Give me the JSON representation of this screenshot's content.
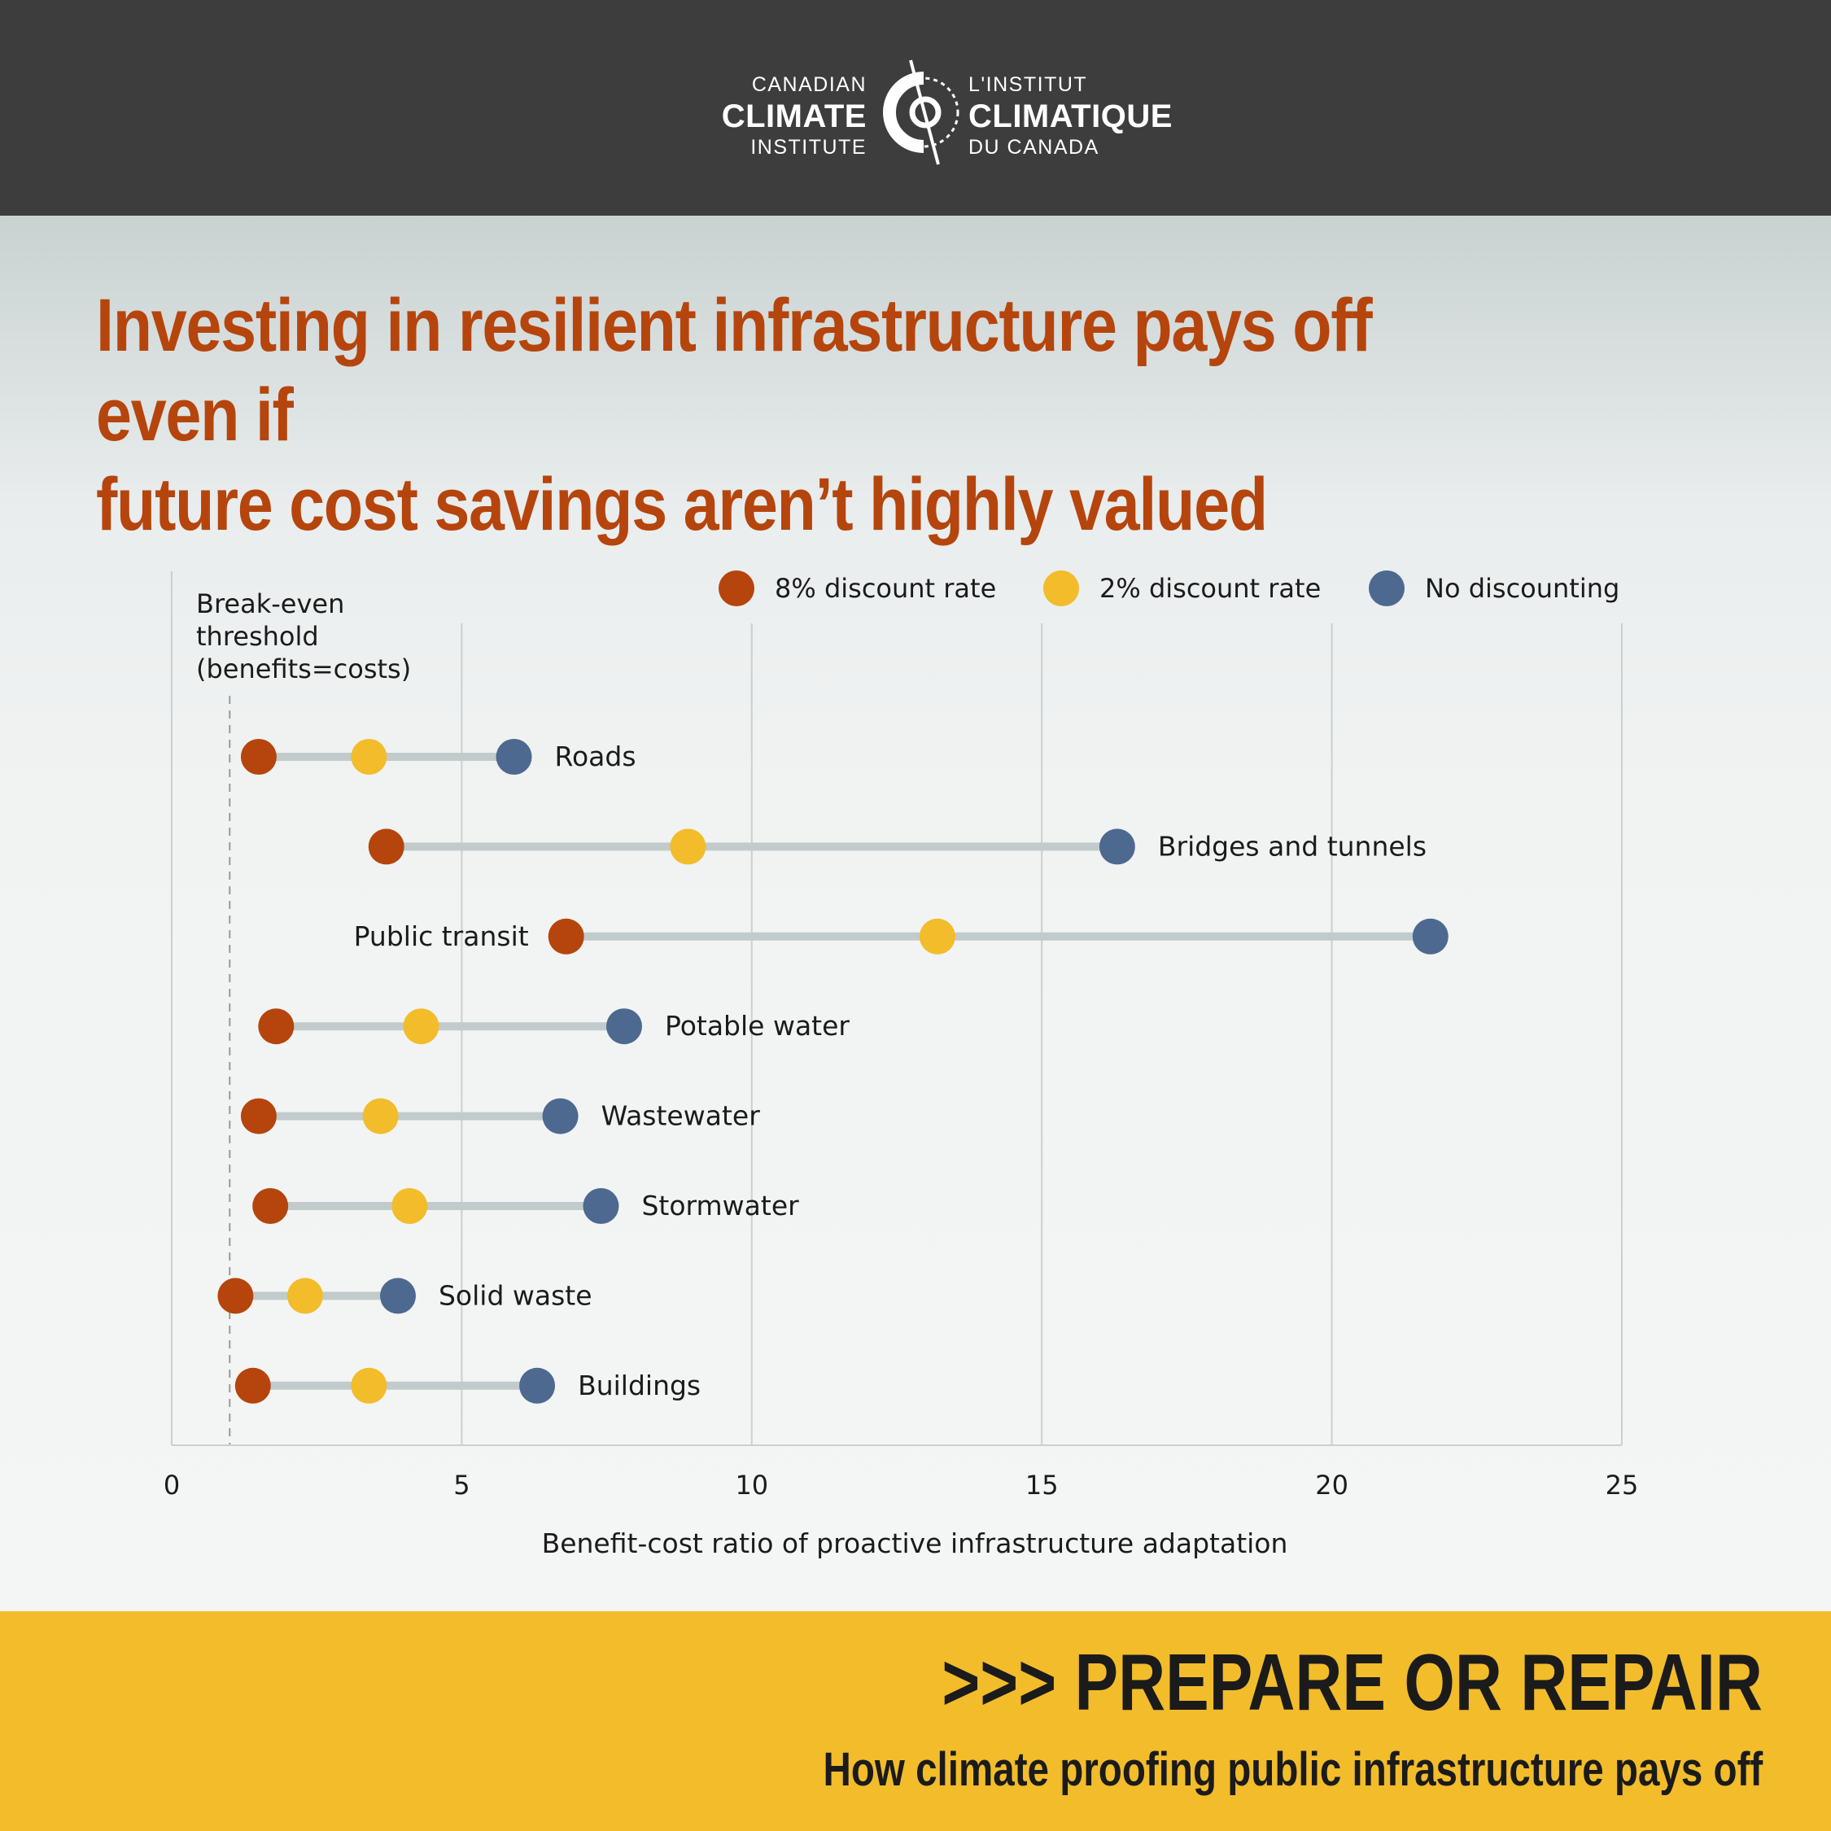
{
  "header": {
    "logo_en": [
      "CANADIAN",
      "CLIMATE",
      "INSTITUTE"
    ],
    "logo_fr": [
      "L'INSTITUT",
      "CLIMATIQUE",
      "DU CANADA"
    ]
  },
  "title_lines": [
    "Investing in resilient infrastructure pays off even if",
    "future cost savings aren’t highly valued"
  ],
  "footer": {
    "title": ">>> PREPARE OR REPAIR",
    "subtitle": "How climate proofing public infrastructure pays off"
  },
  "colors": {
    "rate8": "#b5450d",
    "rate2": "#f2bc2b",
    "none": "#4d6990",
    "connector": "#c2cbcb"
  },
  "chart_data": {
    "type": "dot",
    "xlabel": "Benefit-cost ratio of proactive infrastructure adaptation",
    "xlim": [
      0,
      25
    ],
    "xticks": [
      0,
      5,
      10,
      15,
      20,
      25
    ],
    "grid": true,
    "legend_position": "top-right",
    "threshold": {
      "value": 1,
      "label": [
        "Break-even",
        "threshold",
        "(benefits=costs)"
      ]
    },
    "series": [
      {
        "name": "8% discount rate",
        "color": "#b5450d"
      },
      {
        "name": "2% discount rate",
        "color": "#f2bc2b"
      },
      {
        "name": "No discounting",
        "color": "#4d6990"
      }
    ],
    "categories": [
      {
        "label": "Roads",
        "values": [
          1.5,
          3.4,
          5.9
        ],
        "label_side": "right"
      },
      {
        "label": "Bridges and tunnels",
        "values": [
          3.7,
          8.9,
          16.3
        ],
        "label_side": "right"
      },
      {
        "label": "Public transit",
        "values": [
          6.8,
          13.2,
          21.7
        ],
        "label_side": "left"
      },
      {
        "label": "Potable water",
        "values": [
          1.8,
          4.3,
          7.8
        ],
        "label_side": "right"
      },
      {
        "label": "Wastewater",
        "values": [
          1.5,
          3.6,
          6.7
        ],
        "label_side": "right"
      },
      {
        "label": "Stormwater",
        "values": [
          1.7,
          4.1,
          7.4
        ],
        "label_side": "right"
      },
      {
        "label": "Solid waste",
        "values": [
          1.1,
          2.3,
          3.9
        ],
        "label_side": "right"
      },
      {
        "label": "Buildings",
        "values": [
          1.4,
          3.4,
          6.3
        ],
        "label_side": "right"
      }
    ]
  }
}
